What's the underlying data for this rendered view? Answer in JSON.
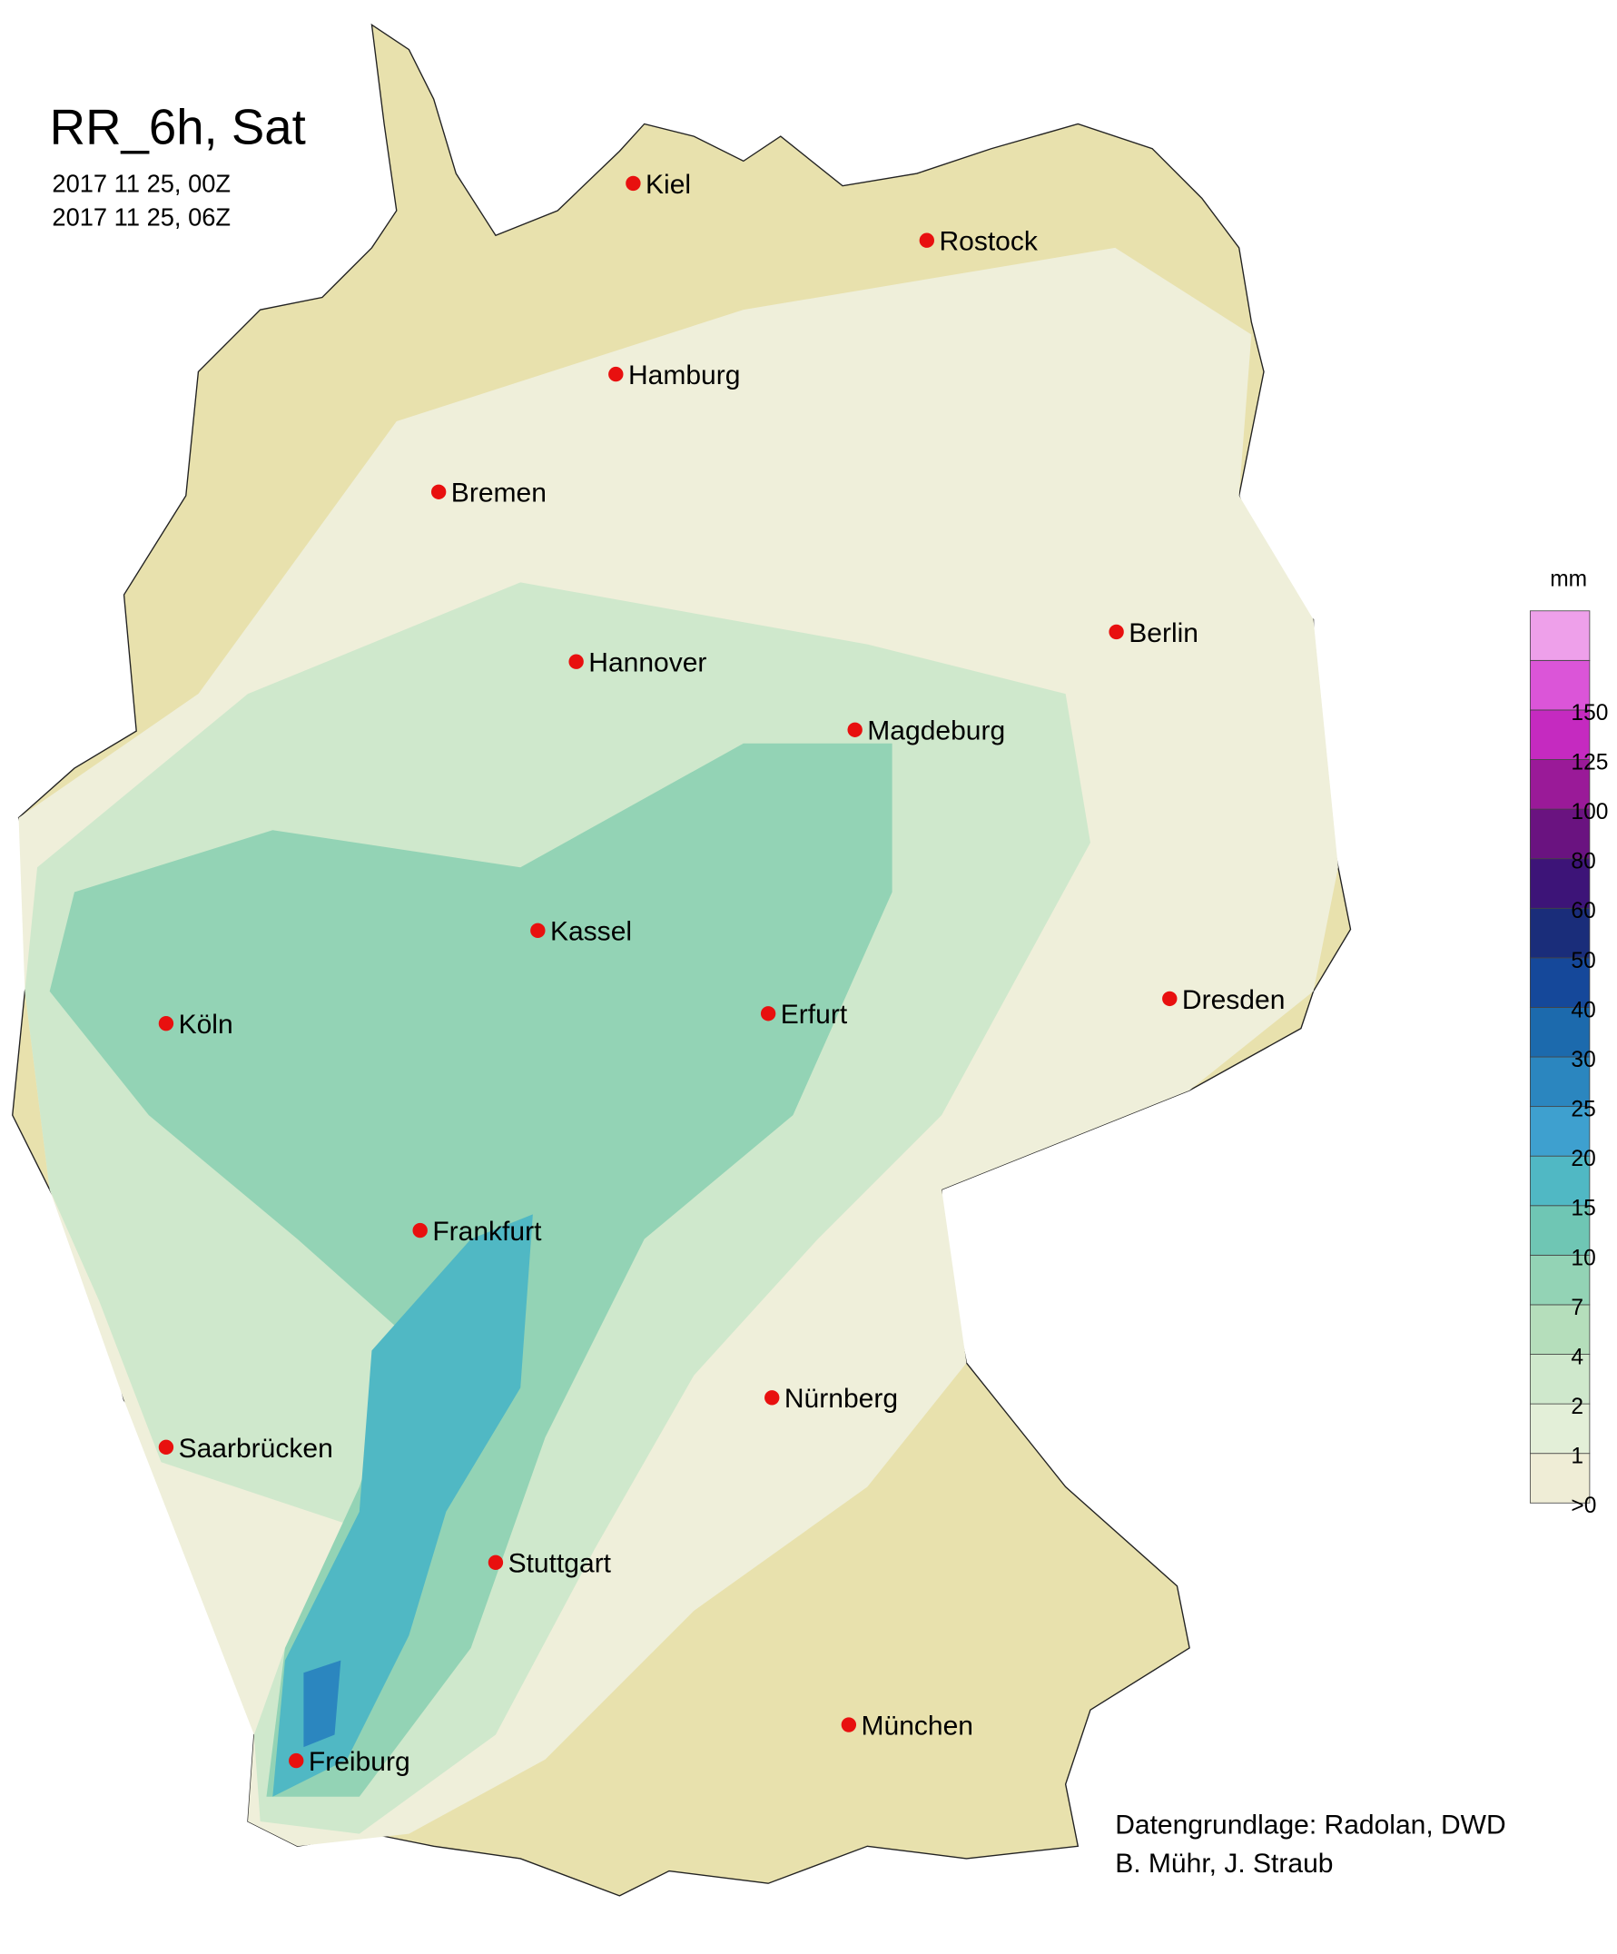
{
  "title": "RR_6h, Sat",
  "period": [
    "2017 11 25, 00Z",
    "2017 11 25, 06Z"
  ],
  "cities": [
    "Kiel",
    "Rostock",
    "Hamburg",
    "Bremen",
    "Berlin",
    "Hannover",
    "Magdeburg",
    "Kassel",
    "Erfurt",
    "Köln",
    "Dresden",
    "Frankfurt",
    "Nürnberg",
    "Saarbrücken",
    "Stuttgart",
    "München",
    "Freiburg"
  ],
  "legend": {
    "unit": "mm",
    "labels": [
      ">0",
      "1",
      "2",
      "4",
      "7",
      "10",
      "15",
      "20",
      "25",
      "30",
      "40",
      "50",
      "60",
      "80",
      "100",
      "125",
      "150"
    ],
    "colors": [
      "#efedd6",
      "#e3efd8",
      "#cfe8cc",
      "#b5debb",
      "#93d3b5",
      "#6fc6b4",
      "#50b8c4",
      "#3ea0cf",
      "#2b86bf",
      "#1c6aad",
      "#15489a",
      "#1a2d7a",
      "#3d1478",
      "#6a1380",
      "#9a1a98",
      "#c52ac0",
      "#db55d8",
      "#eea0ea"
    ]
  },
  "credits": [
    "Datengrundlage: Radolan, DWD",
    "B. Mühr, J. Straub"
  ]
}
